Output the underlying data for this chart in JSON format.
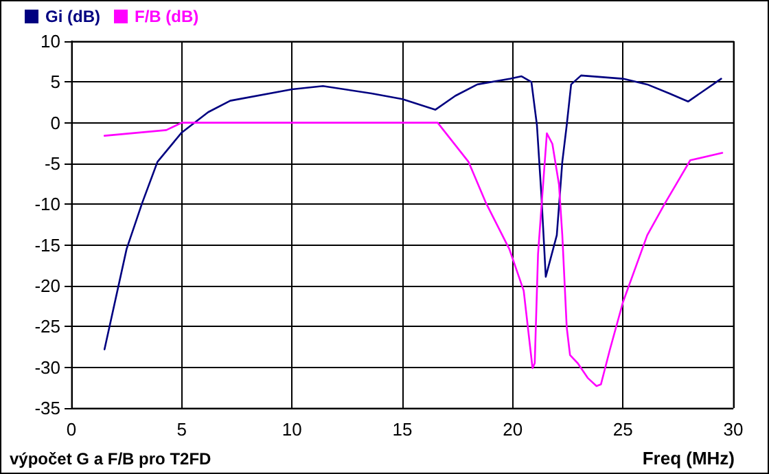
{
  "chart_data": {
    "type": "line",
    "xlabel": "Freq (MHz)",
    "annotations": [
      "výpočet G a F/B pro T2FD"
    ],
    "xlim": [
      0,
      30
    ],
    "xticks": [
      0,
      5,
      10,
      15,
      20,
      25,
      30
    ],
    "ylim": [
      -35,
      10
    ],
    "yticks": [
      -35,
      -30,
      -25,
      -20,
      -15,
      -10,
      -5,
      0,
      5,
      10
    ],
    "grid": true,
    "legend": "top left",
    "marker": "none",
    "line_style": "solid",
    "series": [
      {
        "name": "Gi (dB)",
        "color": "#000080",
        "x": [
          1.5,
          2.5,
          3.2,
          3.9,
          5.0,
          6.2,
          7.2,
          10.0,
          11.4,
          13.6,
          15.0,
          16.5,
          17.4,
          18.4,
          19.9,
          20.4,
          20.85,
          21.1,
          21.3,
          21.5,
          22.0,
          22.25,
          22.45,
          22.65,
          23.1,
          25.0,
          26.1,
          27.1,
          27.95,
          29.45
        ],
        "values": [
          -27.8,
          -15.5,
          -9.9,
          -4.8,
          -1.2,
          1.3,
          2.7,
          4.1,
          4.5,
          3.6,
          2.9,
          1.6,
          3.3,
          4.7,
          5.4,
          5.7,
          5.0,
          -0.3,
          -8.8,
          -18.9,
          -13.8,
          -4.8,
          -0.3,
          4.7,
          5.8,
          5.4,
          4.7,
          3.6,
          2.6,
          5.4
        ]
      },
      {
        "name": "F/B (dB)",
        "color": "#ff00ff",
        "x": [
          1.5,
          4.3,
          5.0,
          16.6,
          18.0,
          18.8,
          19.85,
          20.5,
          20.9,
          21.0,
          21.15,
          21.3,
          21.55,
          21.8,
          22.1,
          22.25,
          22.45,
          22.6,
          22.95,
          23.4,
          23.8,
          24.0,
          24.4,
          25.0,
          26.1,
          26.9,
          28.05,
          29.5
        ],
        "values": [
          -1.6,
          -0.9,
          0,
          0,
          -4.8,
          -9.9,
          -15.5,
          -20.6,
          -30.1,
          -29.5,
          -16.1,
          -10.5,
          -1.3,
          -2.6,
          -7.6,
          -13.8,
          -25.1,
          -28.5,
          -29.5,
          -31.3,
          -32.3,
          -32.1,
          -27.9,
          -22.0,
          -13.8,
          -9.9,
          -4.6,
          -3.7
        ]
      }
    ]
  }
}
